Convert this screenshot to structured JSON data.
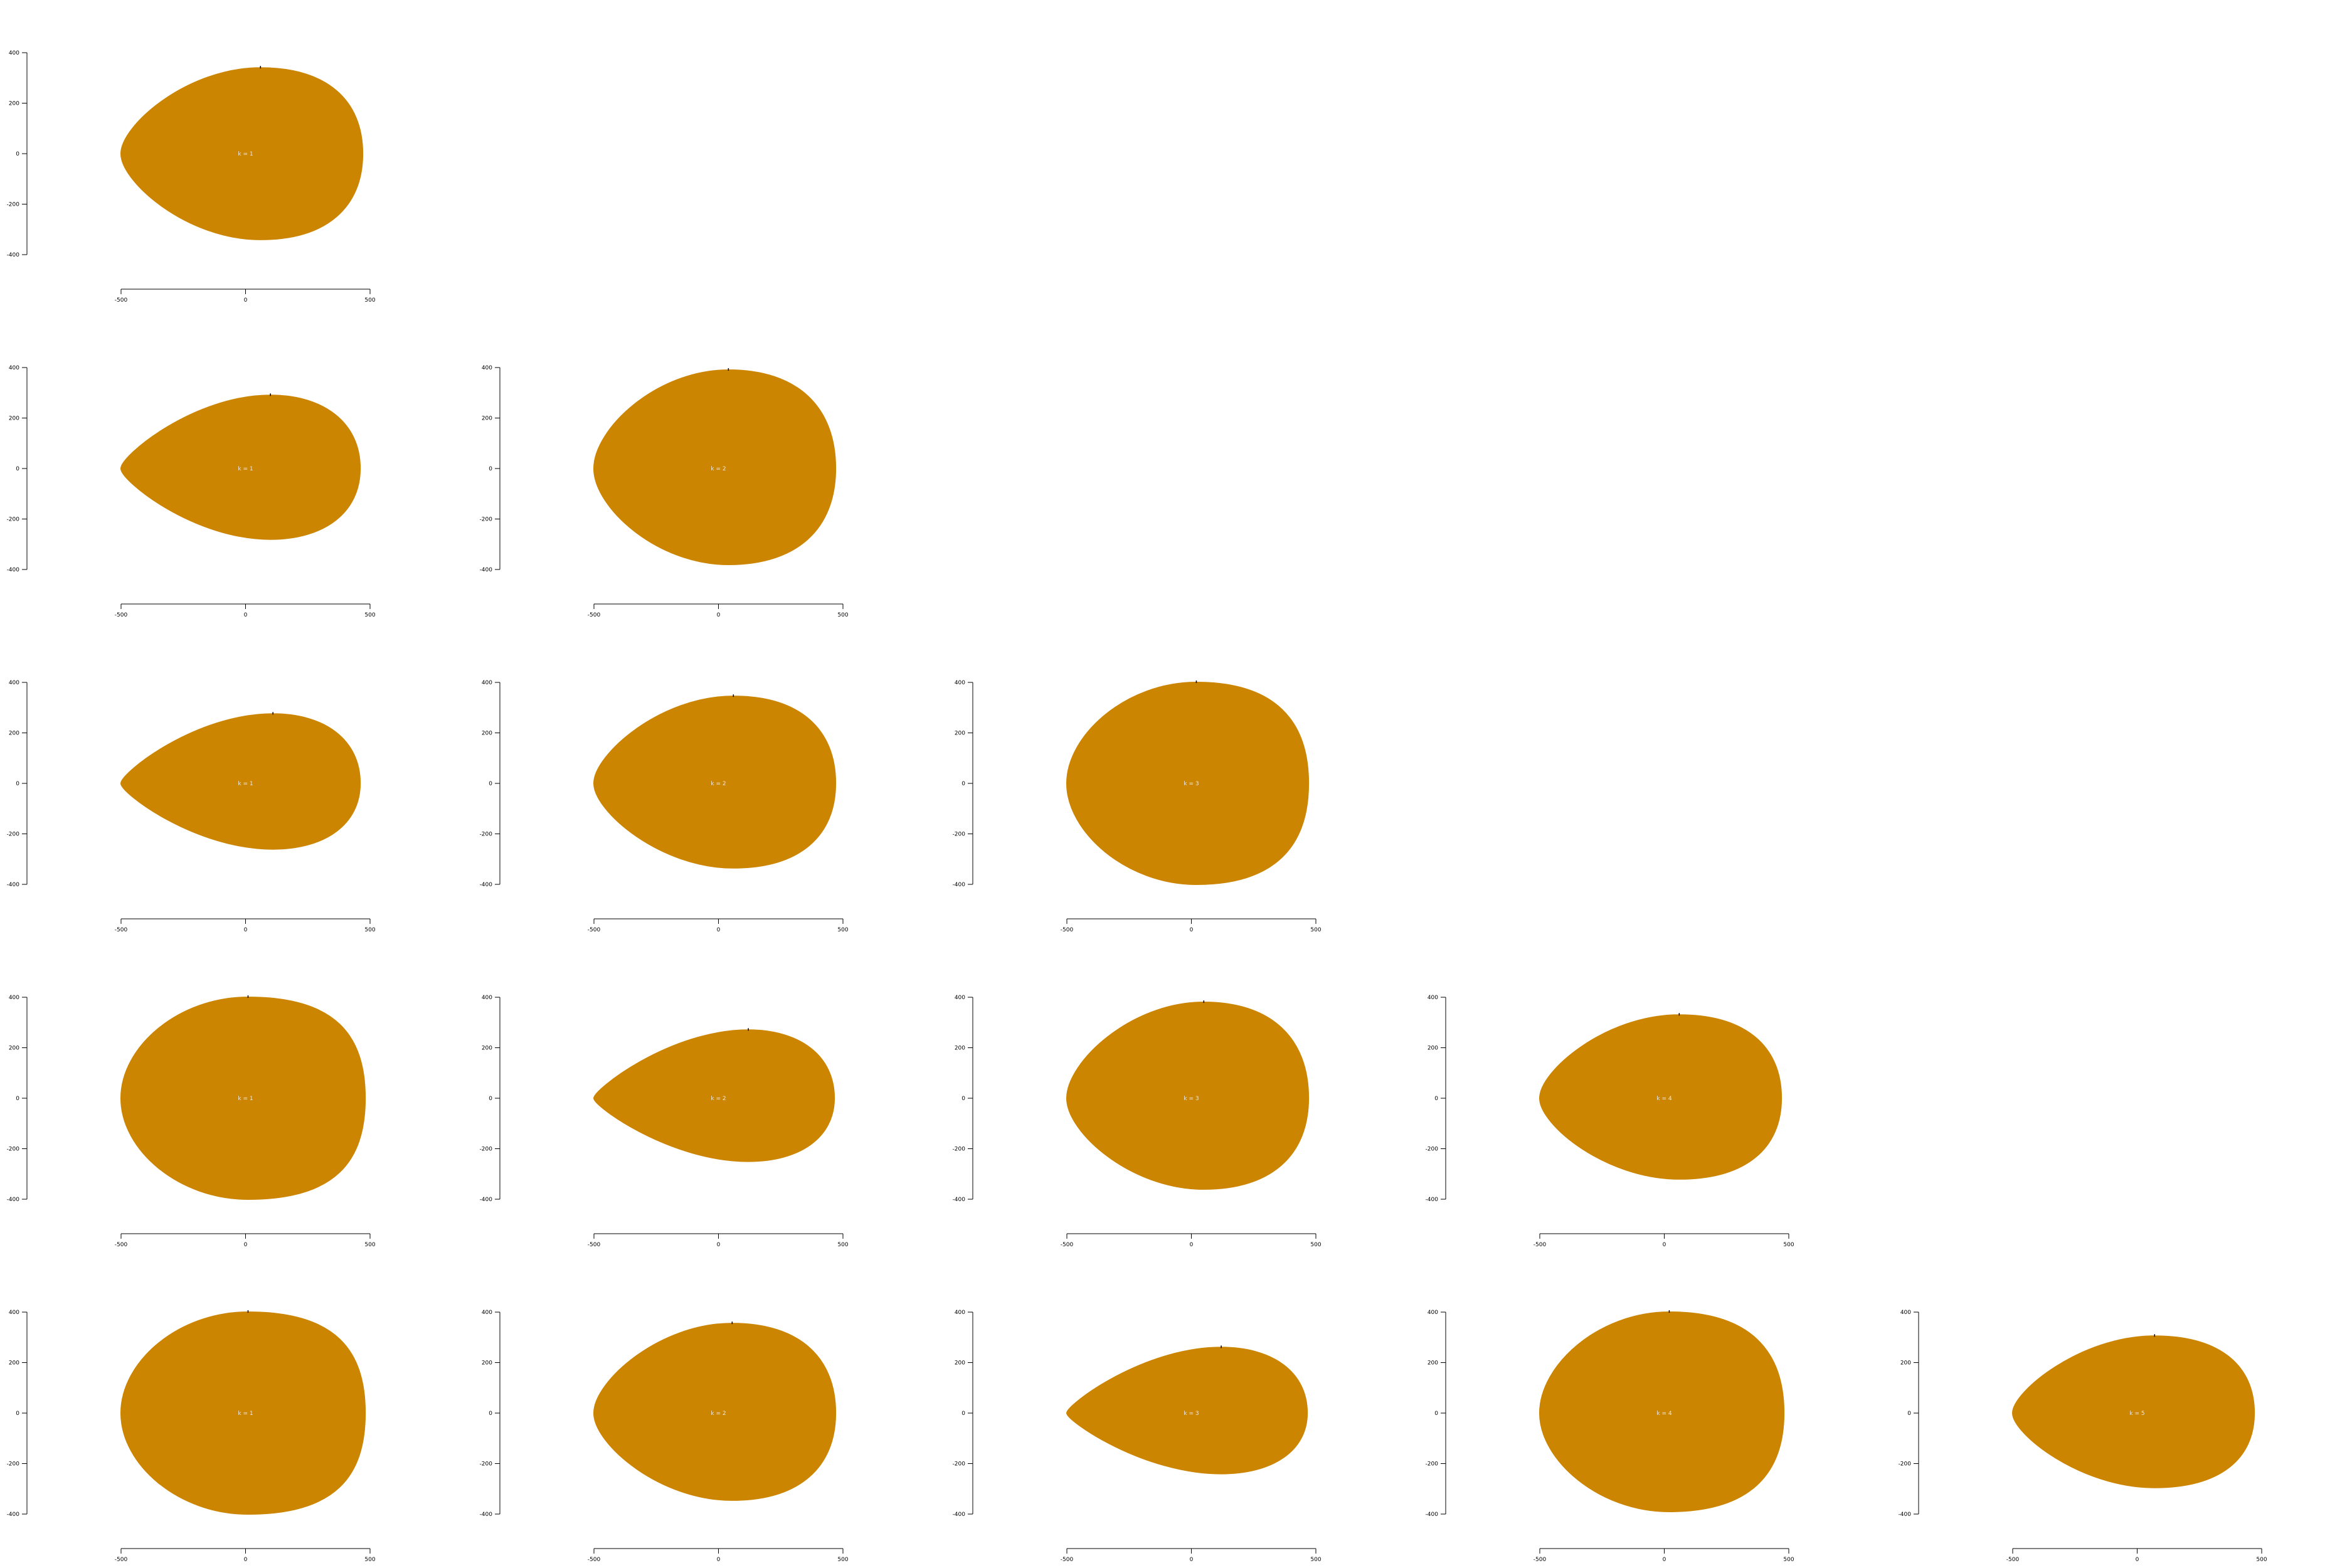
{
  "figure": {
    "shape_color": "#CC8500",
    "label_color": "#E8E8E8",
    "axis_color": "#000000"
  },
  "chart_data": [
    {
      "type": "shape-outline",
      "row": 1,
      "col": 1,
      "label": "k = 1",
      "xlim": [
        -500,
        500
      ],
      "ylim": [
        -400,
        400
      ],
      "xticks": [
        "-500",
        "0",
        "500"
      ],
      "yticks": [
        "400",
        "200",
        "0",
        "-200",
        "-400"
      ],
      "shape": {
        "x_range": [
          -500,
          470
        ],
        "top": 340,
        "bottom": -340,
        "tip_y": 0,
        "max_width_at_x": 60,
        "tip_sharpness": 0.45,
        "right_bluntness": 0.65
      }
    },
    {
      "type": "shape-outline",
      "row": 2,
      "col": 1,
      "label": "k = 1",
      "xlim": [
        -500,
        500
      ],
      "ylim": [
        -400,
        400
      ],
      "xticks": [
        "-500",
        "0",
        "500"
      ],
      "yticks": [
        "400",
        "200",
        "0",
        "-200",
        "-400"
      ],
      "shape": {
        "x_range": [
          -500,
          460
        ],
        "top": 290,
        "bottom": -280,
        "tip_y": 0,
        "max_width_at_x": 100,
        "tip_sharpness": 0.75,
        "right_bluntness": 0.6
      }
    },
    {
      "type": "shape-outline",
      "row": 2,
      "col": 2,
      "label": "k = 2",
      "xlim": [
        -500,
        500
      ],
      "ylim": [
        -400,
        400
      ],
      "xticks": [
        "-500",
        "0",
        "500"
      ],
      "yticks": [
        "400",
        "200",
        "0",
        "-200",
        "-400"
      ],
      "shape": {
        "x_range": [
          -500,
          470
        ],
        "top": 390,
        "bottom": -380,
        "tip_y": 0,
        "max_width_at_x": 40,
        "tip_sharpness": 0.3,
        "right_bluntness": 0.65
      }
    },
    {
      "type": "shape-outline",
      "row": 3,
      "col": 1,
      "label": "k = 1",
      "xlim": [
        -500,
        500
      ],
      "ylim": [
        -400,
        400
      ],
      "xticks": [
        "-500",
        "0",
        "500"
      ],
      "yticks": [
        "400",
        "200",
        "0",
        "-200",
        "-400"
      ],
      "shape": {
        "x_range": [
          -500,
          460
        ],
        "top": 275,
        "bottom": -260,
        "tip_y": 0,
        "max_width_at_x": 110,
        "tip_sharpness": 0.8,
        "right_bluntness": 0.6
      }
    },
    {
      "type": "shape-outline",
      "row": 3,
      "col": 2,
      "label": "k = 2",
      "xlim": [
        -500,
        500
      ],
      "ylim": [
        -400,
        400
      ],
      "xticks": [
        "-500",
        "0",
        "500"
      ],
      "yticks": [
        "400",
        "200",
        "0",
        "-200",
        "-400"
      ],
      "shape": {
        "x_range": [
          -500,
          470
        ],
        "top": 345,
        "bottom": -335,
        "tip_y": 0,
        "max_width_at_x": 60,
        "tip_sharpness": 0.45,
        "right_bluntness": 0.65
      }
    },
    {
      "type": "shape-outline",
      "row": 3,
      "col": 3,
      "label": "k = 3",
      "xlim": [
        -500,
        500
      ],
      "ylim": [
        -400,
        400
      ],
      "xticks": [
        "-500",
        "0",
        "500"
      ],
      "yticks": [
        "400",
        "200",
        "0",
        "-200",
        "-400"
      ],
      "shape": {
        "x_range": [
          -500,
          470
        ],
        "top": 400,
        "bottom": -400,
        "tip_y": 0,
        "max_width_at_x": 20,
        "tip_sharpness": 0.15,
        "right_bluntness": 0.7
      }
    },
    {
      "type": "shape-outline",
      "row": 4,
      "col": 1,
      "label": "k = 1",
      "xlim": [
        -500,
        500
      ],
      "ylim": [
        -400,
        400
      ],
      "xticks": [
        "-500",
        "0",
        "500"
      ],
      "yticks": [
        "400",
        "200",
        "0",
        "-200",
        "-400"
      ],
      "shape": {
        "x_range": [
          -500,
          480
        ],
        "top": 400,
        "bottom": -400,
        "tip_y": 0,
        "max_width_at_x": 10,
        "tip_sharpness": 0.08,
        "right_bluntness": 0.75
      }
    },
    {
      "type": "shape-outline",
      "row": 4,
      "col": 2,
      "label": "k = 2",
      "xlim": [
        -500,
        500
      ],
      "ylim": [
        -400,
        400
      ],
      "xticks": [
        "-500",
        "0",
        "500"
      ],
      "yticks": [
        "400",
        "200",
        "0",
        "-200",
        "-400"
      ],
      "shape": {
        "x_range": [
          -500,
          465
        ],
        "top": 270,
        "bottom": -250,
        "tip_y": 0,
        "max_width_at_x": 120,
        "tip_sharpness": 0.85,
        "right_bluntness": 0.6
      }
    },
    {
      "type": "shape-outline",
      "row": 4,
      "col": 3,
      "label": "k = 3",
      "xlim": [
        -500,
        500
      ],
      "ylim": [
        -400,
        400
      ],
      "xticks": [
        "-500",
        "0",
        "500"
      ],
      "yticks": [
        "400",
        "200",
        "0",
        "-200",
        "-400"
      ],
      "shape": {
        "x_range": [
          -500,
          470
        ],
        "top": 380,
        "bottom": -360,
        "tip_y": 0,
        "max_width_at_x": 50,
        "tip_sharpness": 0.35,
        "right_bluntness": 0.65
      }
    },
    {
      "type": "shape-outline",
      "row": 4,
      "col": 4,
      "label": "k = 4",
      "xlim": [
        -500,
        500
      ],
      "ylim": [
        -400,
        400
      ],
      "xticks": [
        "-500",
        "0",
        "500"
      ],
      "yticks": [
        "400",
        "200",
        "0",
        "-200",
        "-400"
      ],
      "shape": {
        "x_range": [
          -500,
          470
        ],
        "top": 330,
        "bottom": -320,
        "tip_y": 0,
        "max_width_at_x": 60,
        "tip_sharpness": 0.45,
        "right_bluntness": 0.65
      }
    },
    {
      "type": "shape-outline",
      "row": 5,
      "col": 1,
      "label": "k = 1",
      "xlim": [
        -500,
        500
      ],
      "ylim": [
        -400,
        400
      ],
      "xticks": [
        "-500",
        "0",
        "500"
      ],
      "yticks": [
        "400",
        "200",
        "0",
        "-200",
        "-400"
      ],
      "shape": {
        "x_range": [
          -500,
          480
        ],
        "top": 400,
        "bottom": -400,
        "tip_y": 0,
        "max_width_at_x": 10,
        "tip_sharpness": 0.08,
        "right_bluntness": 0.75
      }
    },
    {
      "type": "shape-outline",
      "row": 5,
      "col": 2,
      "label": "k = 2",
      "xlim": [
        -500,
        500
      ],
      "ylim": [
        -400,
        400
      ],
      "xticks": [
        "-500",
        "0",
        "500"
      ],
      "yticks": [
        "400",
        "200",
        "0",
        "-200",
        "-400"
      ],
      "shape": {
        "x_range": [
          -500,
          470
        ],
        "top": 355,
        "bottom": -345,
        "tip_y": 0,
        "max_width_at_x": 55,
        "tip_sharpness": 0.4,
        "right_bluntness": 0.65
      }
    },
    {
      "type": "shape-outline",
      "row": 5,
      "col": 3,
      "label": "k = 3",
      "xlim": [
        -500,
        500
      ],
      "ylim": [
        -400,
        400
      ],
      "xticks": [
        "-500",
        "0",
        "500"
      ],
      "yticks": [
        "400",
        "200",
        "0",
        "-200",
        "-400"
      ],
      "shape": {
        "x_range": [
          -500,
          465
        ],
        "top": 260,
        "bottom": -240,
        "tip_y": 0,
        "max_width_at_x": 120,
        "tip_sharpness": 0.85,
        "right_bluntness": 0.6
      }
    },
    {
      "type": "shape-outline",
      "row": 5,
      "col": 4,
      "label": "k = 4",
      "xlim": [
        -500,
        500
      ],
      "ylim": [
        -400,
        400
      ],
      "xticks": [
        "-500",
        "0",
        "500"
      ],
      "yticks": [
        "400",
        "200",
        "0",
        "-200",
        "-400"
      ],
      "shape": {
        "x_range": [
          -500,
          480
        ],
        "top": 400,
        "bottom": -390,
        "tip_y": 0,
        "max_width_at_x": 20,
        "tip_sharpness": 0.15,
        "right_bluntness": 0.7
      }
    },
    {
      "type": "shape-outline",
      "row": 5,
      "col": 5,
      "label": "k = 5",
      "xlim": [
        -500,
        500
      ],
      "ylim": [
        -400,
        400
      ],
      "xticks": [
        "-500",
        "0",
        "500"
      ],
      "yticks": [
        "400",
        "200",
        "0",
        "-200",
        "-400"
      ],
      "shape": {
        "x_range": [
          -500,
          470
        ],
        "top": 305,
        "bottom": -295,
        "tip_y": 0,
        "max_width_at_x": 70,
        "tip_sharpness": 0.55,
        "right_bluntness": 0.65
      }
    }
  ]
}
